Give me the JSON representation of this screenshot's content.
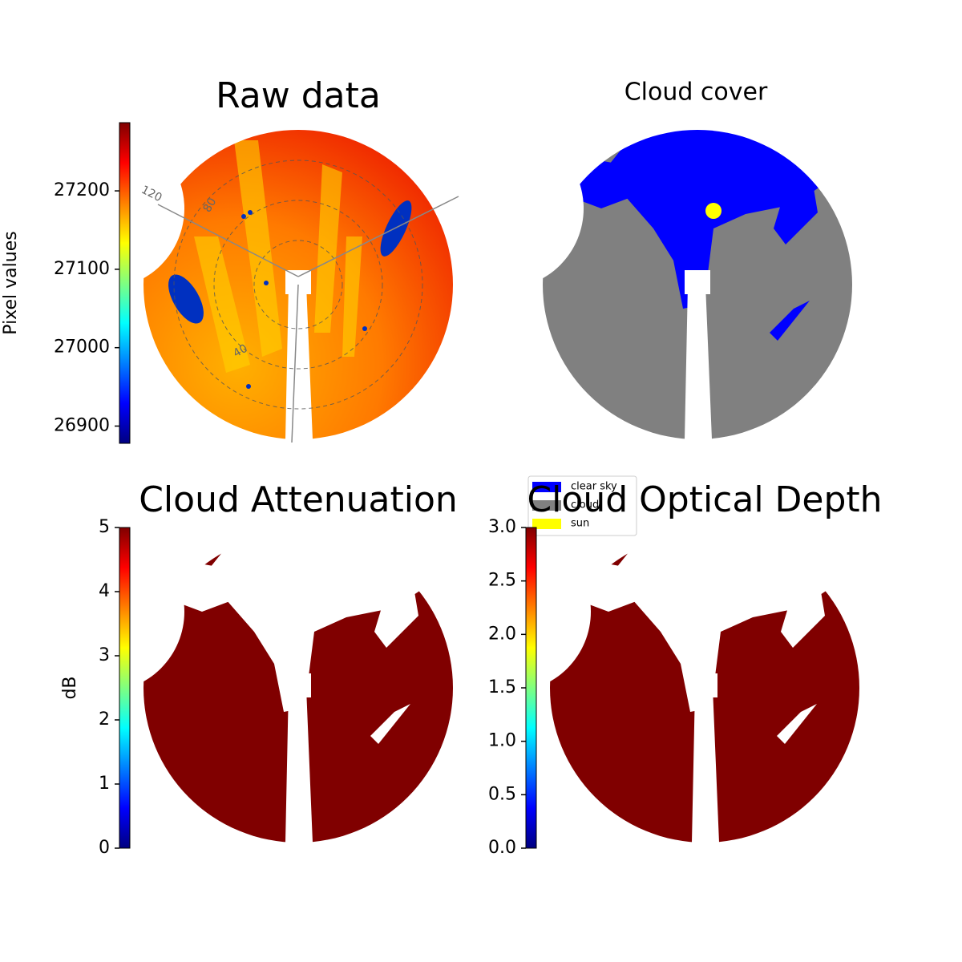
{
  "chart_data": [
    {
      "type": "image",
      "title": "Raw data",
      "colorbar": {
        "label": "Pixel values",
        "lim": [
          26878,
          27287
        ],
        "ticks": [
          26900,
          27000,
          27100,
          27200
        ]
      },
      "polar_labels": [
        "120",
        "80",
        "40"
      ]
    },
    {
      "type": "image",
      "title": "Cloud cover",
      "series": [
        {
          "name": "clear sky",
          "color": "#0000ff"
        },
        {
          "name": "cloud",
          "color": "#808080"
        },
        {
          "name": "sun",
          "color": "#ffff00"
        }
      ]
    },
    {
      "type": "image",
      "title": "Cloud Attenuation",
      "colorbar": {
        "label": "dB",
        "lim": [
          0,
          5
        ],
        "ticks": [
          0,
          1,
          2,
          3,
          4,
          5
        ]
      }
    },
    {
      "type": "image",
      "title": "Cloud Optical Depth",
      "colorbar": {
        "lim": [
          0,
          3
        ],
        "ticks": [
          {
            "value": 0,
            "label": "0.0"
          },
          0.5,
          {
            "value": 1,
            "label": "1.0"
          },
          1.5,
          {
            "value": 2,
            "label": "2.0"
          },
          2.5,
          {
            "value": 3,
            "label": "3.0"
          }
        ]
      }
    }
  ]
}
